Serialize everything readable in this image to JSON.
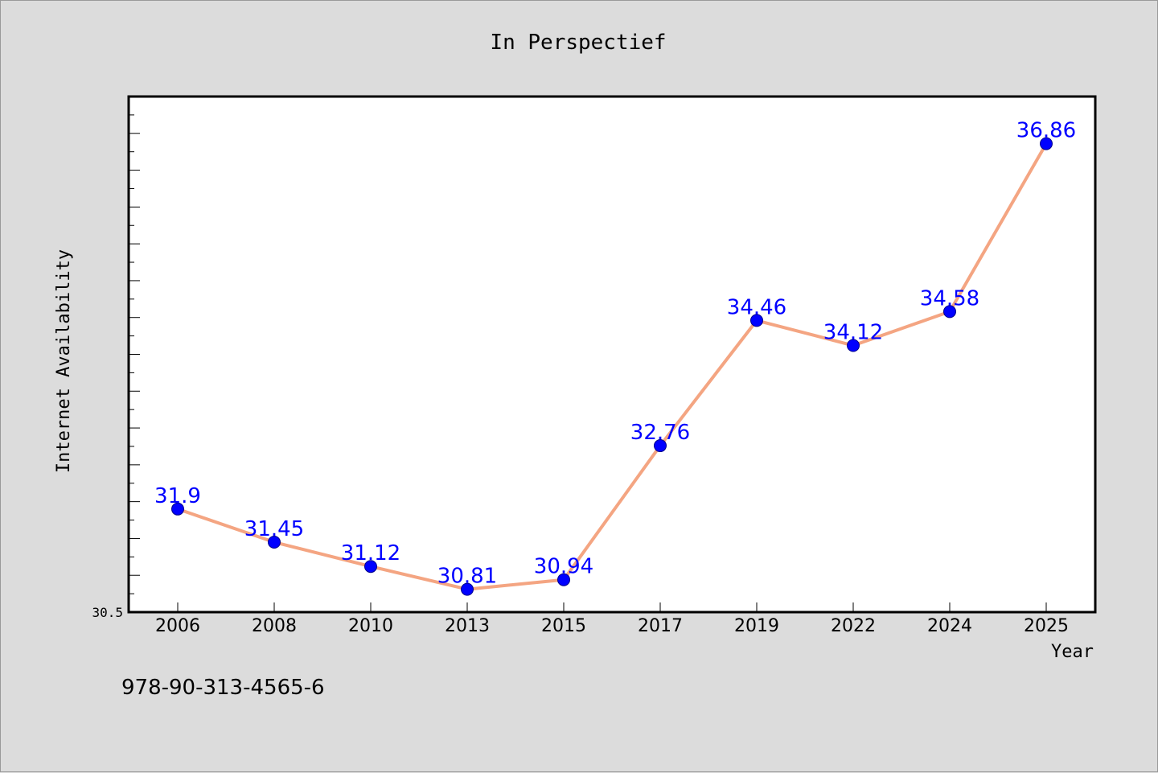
{
  "chart_data": {
    "type": "line",
    "title": "In Perspectief",
    "xlabel": "Year",
    "ylabel": "Internet Availability",
    "categories": [
      "2006",
      "2008",
      "2010",
      "2013",
      "2015",
      "2017",
      "2019",
      "2022",
      "2024",
      "2025"
    ],
    "series": [
      {
        "values": [
          31.9,
          31.45,
          31.12,
          30.81,
          30.94,
          32.76,
          34.46,
          34.12,
          34.58,
          36.86
        ]
      }
    ],
    "value_labels": [
      "31.9",
      "31.45",
      "31.12",
      "30.81",
      "30.94",
      "32.76",
      "34.46",
      "34.12",
      "34.58",
      "36.86"
    ],
    "ylim": [
      30.5,
      37.5
    ],
    "y_tick_label": "30.5",
    "grid": false,
    "legend": "none",
    "colors": {
      "line": "#f4a582",
      "marker": "#0000ff",
      "value_label": "#0000ff",
      "background": "#dcdcdc",
      "plot_background": "#ffffff"
    }
  },
  "footnote": "978-90-313-4565-6"
}
